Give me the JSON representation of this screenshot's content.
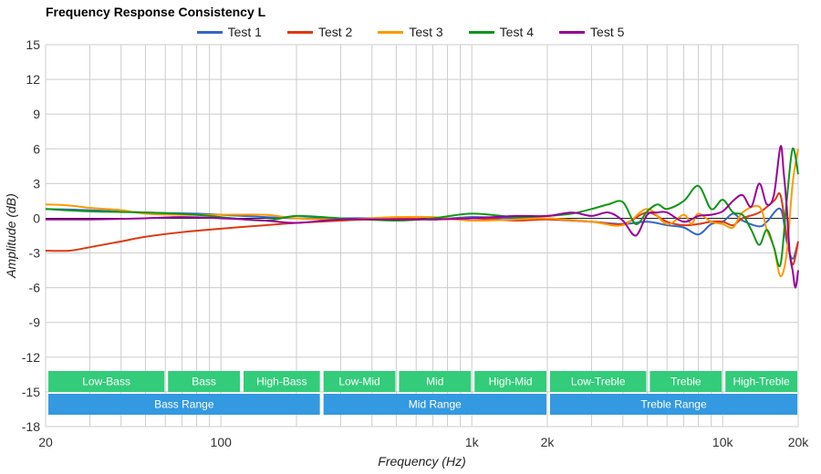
{
  "chart_data": {
    "type": "line",
    "title": "Frequency Response Consistency L",
    "xlabel": "Frequency (Hz)",
    "ylabel": "Amplitude (dB)",
    "x_scale": "log",
    "xlim": [
      20,
      20000
    ],
    "ylim": [
      -18,
      15
    ],
    "grid": true,
    "legend_position": "top-center",
    "x_ticks": [
      {
        "value": 20,
        "label": "20"
      },
      {
        "value": 100,
        "label": "100"
      },
      {
        "value": 1000,
        "label": "1k"
      },
      {
        "value": 2000,
        "label": "2k"
      },
      {
        "value": 10000,
        "label": "10k"
      },
      {
        "value": 20000,
        "label": "20k"
      }
    ],
    "y_ticks": [
      15,
      12,
      9,
      6,
      3,
      0,
      -3,
      -6,
      -9,
      -12,
      -15,
      -18
    ],
    "series": [
      {
        "name": "Test 1",
        "color": "#3366cc",
        "x": [
          20,
          30,
          50,
          80,
          100,
          150,
          200,
          300,
          500,
          700,
          1000,
          1500,
          2000,
          3000,
          4000,
          5000,
          6000,
          7000,
          8000,
          9000,
          10000,
          11000,
          12000,
          14000,
          15000,
          17000,
          18000,
          19000,
          20000
        ],
        "y": [
          0.8,
          0.7,
          0.5,
          0.4,
          0.3,
          0.1,
          0.0,
          0.0,
          0.0,
          -0.1,
          0.1,
          0.0,
          0.0,
          -0.3,
          -0.5,
          -0.3,
          -0.6,
          -0.8,
          -1.4,
          -0.5,
          -0.3,
          0.4,
          -0.2,
          -0.7,
          -0.3,
          0.8,
          -2.0,
          -3.5,
          -2.0
        ]
      },
      {
        "name": "Test 2",
        "color": "#dc3912",
        "x": [
          20,
          25,
          30,
          40,
          50,
          70,
          100,
          150,
          200,
          300,
          500,
          700,
          1000,
          1500,
          2000,
          3000,
          4000,
          5000,
          6000,
          7000,
          8000,
          9000,
          10000,
          11000,
          12000,
          14000,
          16000,
          17000,
          18000,
          19000,
          20000
        ],
        "y": [
          -2.8,
          -2.8,
          -2.5,
          -2.0,
          -1.6,
          -1.2,
          -0.9,
          -0.6,
          -0.4,
          -0.2,
          0.0,
          -0.1,
          0.0,
          -0.2,
          -0.1,
          -0.3,
          -0.5,
          0.5,
          -0.3,
          -0.6,
          -0.5,
          -0.3,
          -0.3,
          -0.6,
          0.0,
          0.5,
          1.5,
          2.0,
          -1.5,
          -4.0,
          -2.0
        ]
      },
      {
        "name": "Test 3",
        "color": "#ff9900",
        "x": [
          20,
          25,
          30,
          40,
          50,
          70,
          100,
          150,
          200,
          300,
          500,
          700,
          1000,
          1500,
          2000,
          3000,
          4000,
          5000,
          6000,
          7000,
          7500,
          8000,
          9000,
          10000,
          11000,
          12000,
          14000,
          15000,
          16000,
          17000,
          18000,
          19000,
          20000
        ],
        "y": [
          1.2,
          1.1,
          0.9,
          0.7,
          0.4,
          0.3,
          0.3,
          0.3,
          0.0,
          -0.1,
          0.1,
          0.1,
          -0.2,
          -0.1,
          0.0,
          -0.3,
          -0.6,
          0.8,
          -0.5,
          0.3,
          -0.5,
          0.4,
          -0.3,
          -0.5,
          -0.8,
          0.5,
          1.0,
          -1.0,
          -2.5,
          -5.0,
          -3.0,
          3.0,
          6.0
        ]
      },
      {
        "name": "Test 4",
        "color": "#109618",
        "x": [
          20,
          30,
          50,
          80,
          100,
          150,
          200,
          300,
          500,
          700,
          1000,
          1500,
          2000,
          2500,
          3000,
          3500,
          4000,
          4500,
          5000,
          5500,
          6000,
          7000,
          8000,
          9000,
          10000,
          11000,
          12000,
          13000,
          14000,
          15000,
          16000,
          17000,
          18000,
          19000,
          20000
        ],
        "y": [
          0.8,
          0.6,
          0.5,
          0.3,
          0.1,
          -0.2,
          0.2,
          0.0,
          -0.2,
          0.0,
          0.4,
          0.1,
          0.2,
          0.4,
          0.8,
          1.2,
          1.4,
          -0.5,
          0.6,
          1.2,
          0.8,
          1.5,
          2.8,
          0.8,
          1.6,
          0.5,
          0.3,
          -1.0,
          -2.3,
          -1.0,
          -2.5,
          -4.0,
          1.5,
          6.0,
          3.8
        ]
      },
      {
        "name": "Test 5",
        "color": "#990099",
        "x": [
          20,
          30,
          50,
          70,
          100,
          150,
          200,
          300,
          500,
          700,
          1000,
          1500,
          2000,
          2500,
          3000,
          3500,
          4000,
          4500,
          5000,
          5500,
          6000,
          7000,
          8000,
          9000,
          10000,
          11000,
          12000,
          13000,
          14000,
          15000,
          16000,
          17000,
          17500,
          18000,
          18500,
          19000,
          19500,
          20000
        ],
        "y": [
          -0.1,
          -0.1,
          0.0,
          0.1,
          0.0,
          -0.2,
          -0.4,
          -0.1,
          -0.1,
          -0.1,
          0.0,
          0.2,
          0.2,
          0.5,
          0.2,
          0.5,
          -0.2,
          -1.5,
          0.3,
          0.5,
          0.5,
          -0.3,
          0.2,
          0.3,
          0.6,
          1.5,
          2.0,
          1.0,
          3.0,
          1.2,
          2.0,
          6.2,
          4.0,
          1.0,
          -3.0,
          -4.5,
          -6.0,
          -4.5
        ]
      }
    ],
    "bands": [
      {
        "label": "Low-Bass",
        "from": 20,
        "to": 60,
        "color": "#33cc7a",
        "row": 1
      },
      {
        "label": "Bass",
        "from": 60,
        "to": 120,
        "color": "#33cc7a",
        "row": 1
      },
      {
        "label": "High-Bass",
        "from": 120,
        "to": 250,
        "color": "#33cc7a",
        "row": 1
      },
      {
        "label": "Low-Mid",
        "from": 250,
        "to": 500,
        "color": "#33cc7a",
        "row": 1
      },
      {
        "label": "Mid",
        "from": 500,
        "to": 1000,
        "color": "#33cc7a",
        "row": 1
      },
      {
        "label": "High-Mid",
        "from": 1000,
        "to": 2000,
        "color": "#33cc7a",
        "row": 1
      },
      {
        "label": "Low-Treble",
        "from": 2000,
        "to": 5000,
        "color": "#33cc7a",
        "row": 1
      },
      {
        "label": "Treble",
        "from": 5000,
        "to": 10000,
        "color": "#33cc7a",
        "row": 1
      },
      {
        "label": "High-Treble",
        "from": 10000,
        "to": 20000,
        "color": "#33cc7a",
        "row": 1
      },
      {
        "label": "Bass Range",
        "from": 20,
        "to": 250,
        "color": "#3399e0",
        "row": 2
      },
      {
        "label": "Mid Range",
        "from": 250,
        "to": 2000,
        "color": "#3399e0",
        "row": 2
      },
      {
        "label": "Treble Range",
        "from": 2000,
        "to": 20000,
        "color": "#3399e0",
        "row": 2
      }
    ]
  }
}
